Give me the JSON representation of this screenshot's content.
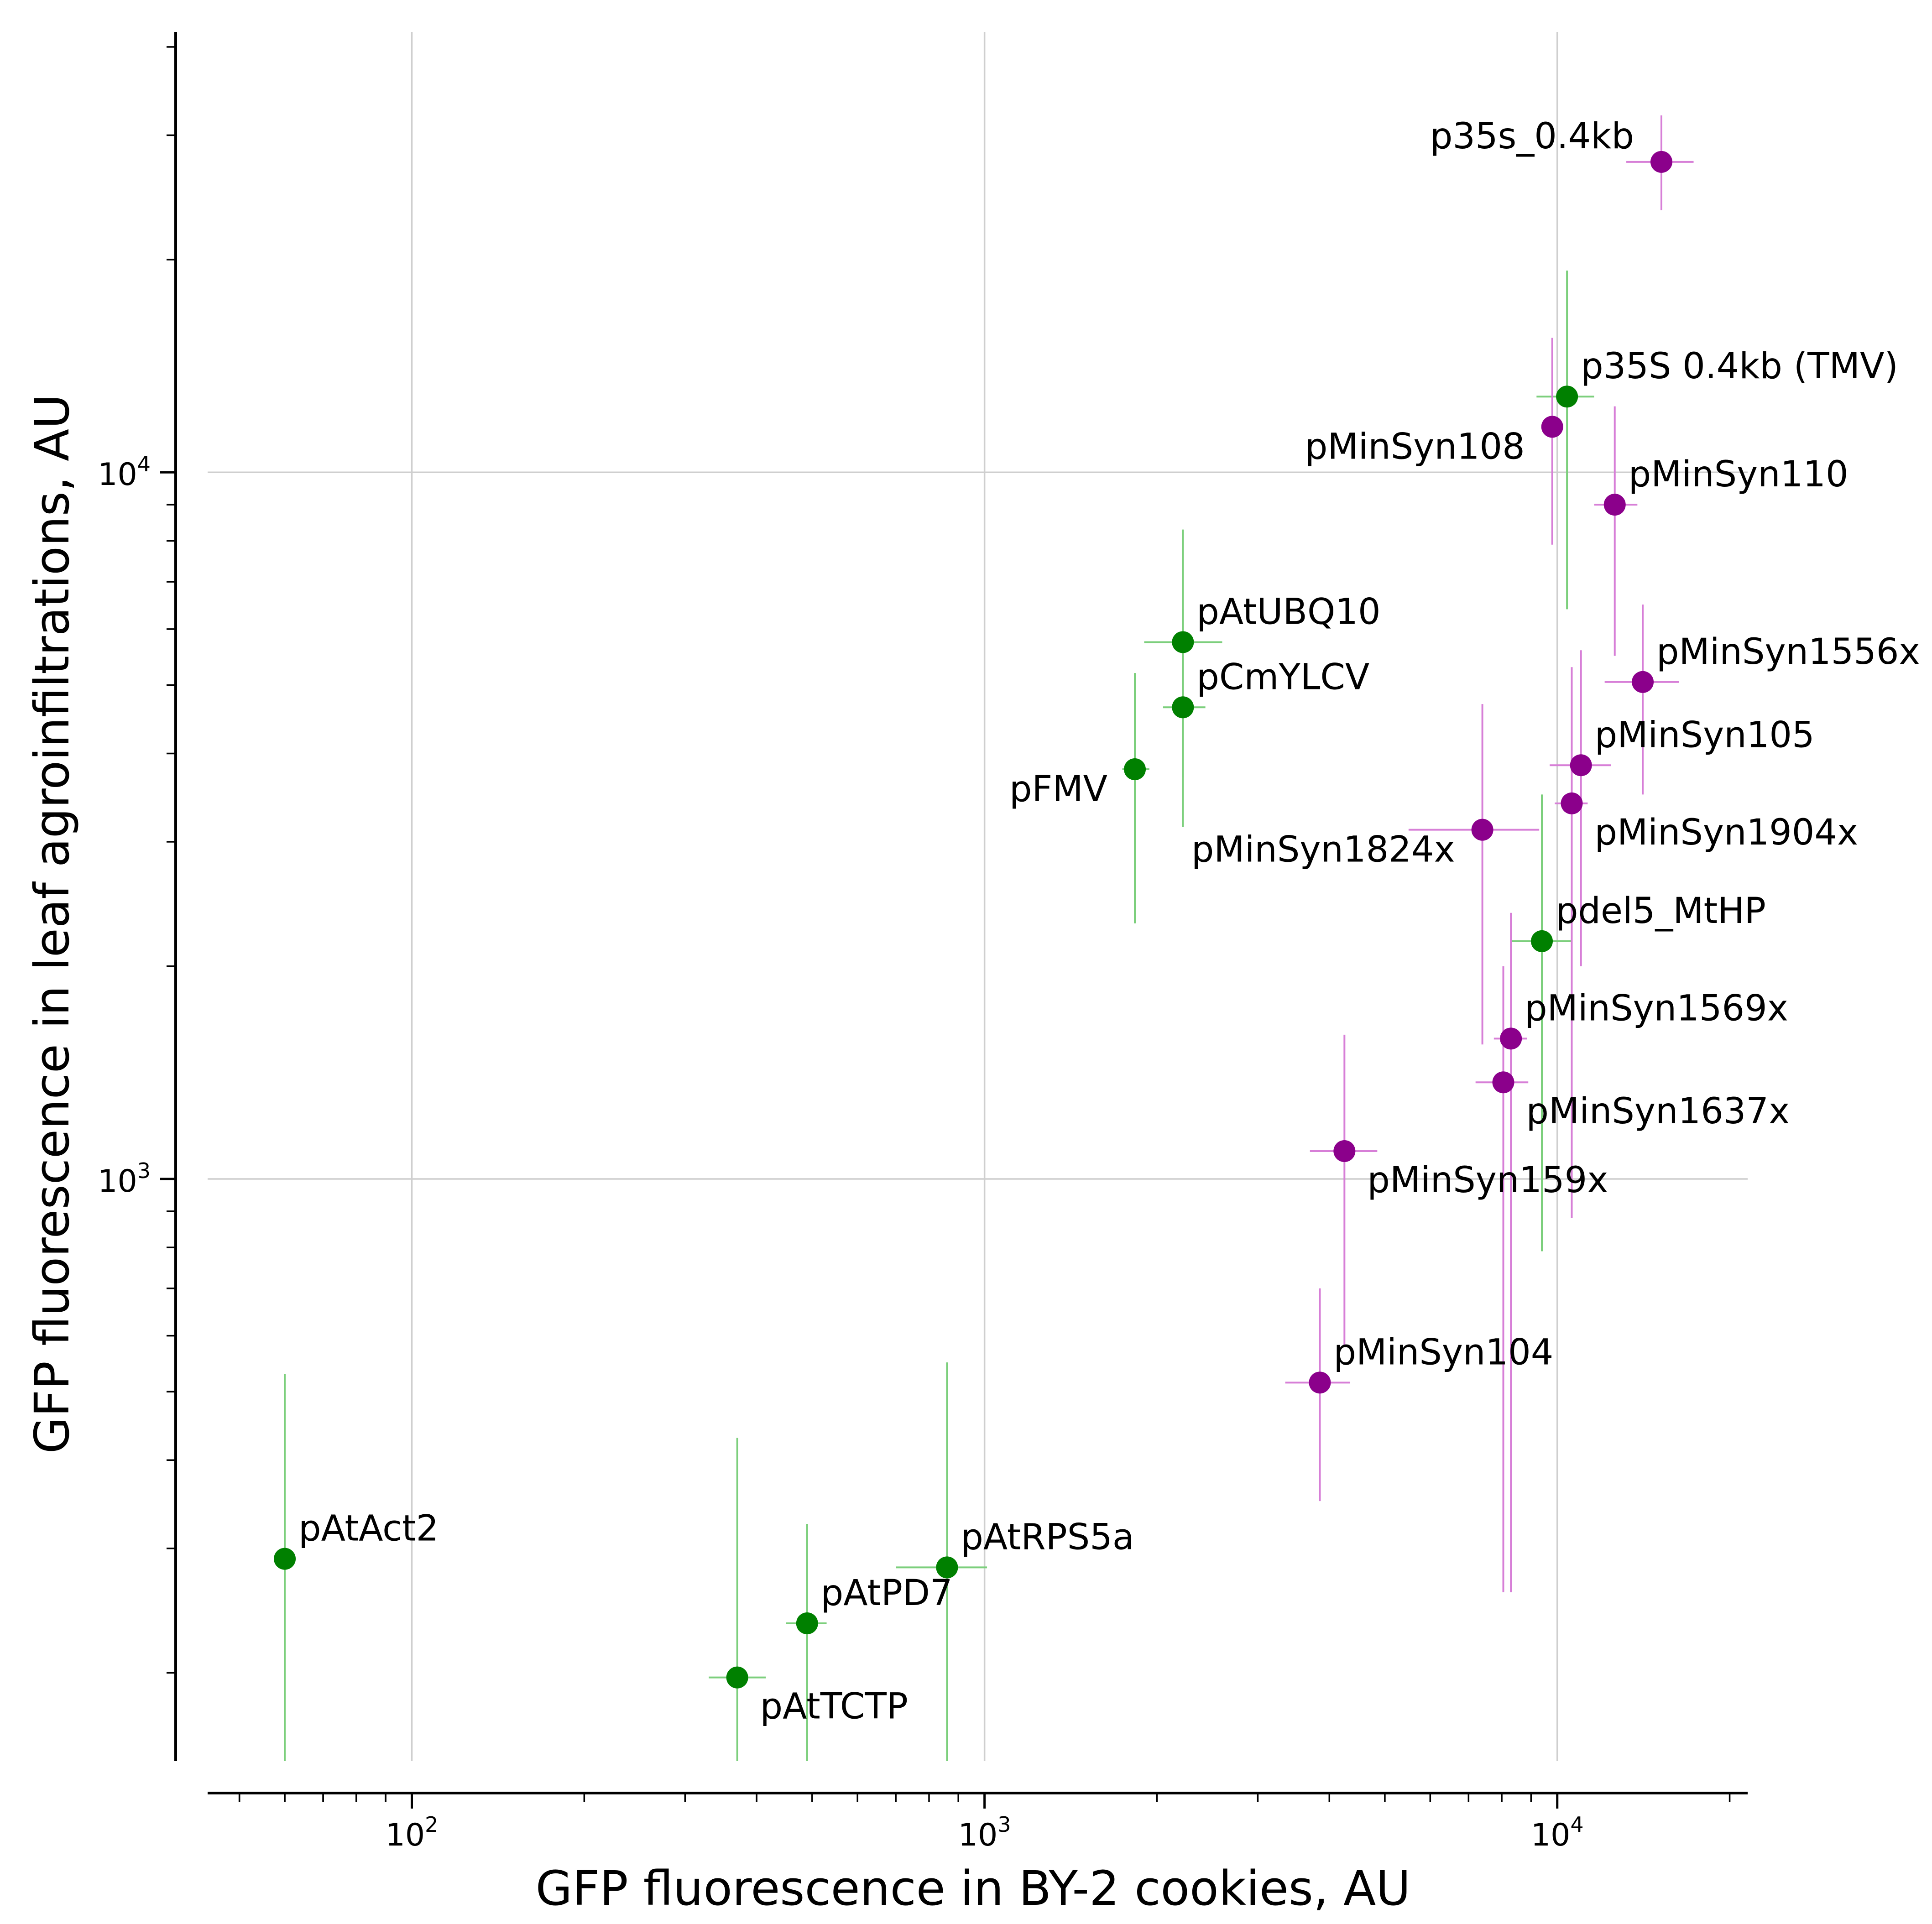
{
  "chart_data": {
    "type": "scatter",
    "title": "",
    "xlabel": "GFP fluorescence in BY-2 cookies, AU",
    "ylabel": "GFP fluorescence in leaf agroinfiltrations, AU",
    "xscale": "log",
    "yscale": "log",
    "xlim": [
      44,
      21500
    ],
    "ylim": [
      150,
      42000
    ],
    "xticks": [
      {
        "value": 100,
        "base": "10",
        "exp": "2"
      },
      {
        "value": 1000,
        "base": "10",
        "exp": "3"
      },
      {
        "value": 10000,
        "base": "10",
        "exp": "4"
      }
    ],
    "yticks": [
      {
        "value": 1000,
        "base": "10",
        "exp": "3"
      },
      {
        "value": 10000,
        "base": "10",
        "exp": "4"
      }
    ],
    "grid": true,
    "colors": {
      "green": "#008000",
      "green_err": "#7ccf7c",
      "purple": "#8b008b",
      "purple_err": "#d77fd7"
    },
    "series": [
      {
        "name": "green",
        "color": "#008000",
        "points": [
          {
            "label": "pAtAct2",
            "x": 60,
            "y": 290,
            "xerr": [
              60,
              60
            ],
            "yerr": [
              150,
              530
            ],
            "label_pos": "upper-right"
          },
          {
            "label": "pAtTCTP",
            "x": 370,
            "y": 197,
            "xerr": [
              330,
              415
            ],
            "yerr": [
              150,
              430
            ],
            "label_pos": "lower-right"
          },
          {
            "label": "pAtPD7",
            "x": 490,
            "y": 235,
            "xerr": [
              450,
              530
            ],
            "yerr": [
              150,
              325
            ],
            "label_pos": "upper-right"
          },
          {
            "label": "pAtRPS5a",
            "x": 860,
            "y": 282,
            "xerr": [
              700,
              1010
            ],
            "yerr": [
              150,
              550
            ],
            "label_pos": "upper-right"
          },
          {
            "label": "pFMV",
            "x": 1830,
            "y": 3800,
            "xerr": [
              1740,
              1940
            ],
            "yerr": [
              2300,
              5200
            ],
            "label_pos": "lower-left"
          },
          {
            "label": "pCmYLCV",
            "x": 2220,
            "y": 4650,
            "xerr": [
              2050,
              2430
            ],
            "yerr": [
              3150,
              6400
            ],
            "label_pos": "upper-right"
          },
          {
            "label": "pAtUBQ10",
            "x": 2220,
            "y": 5750,
            "xerr": [
              1900,
              2600
            ],
            "yerr": [
              3700,
              8300
            ],
            "label_pos": "upper-right"
          },
          {
            "label": "pdel5_MtHP",
            "x": 9400,
            "y": 2170,
            "xerr": [
              8300,
              10600
            ],
            "yerr": [
              790,
              3500
            ],
            "label_pos": "upper-right"
          },
          {
            "label": "p35S 0.4kb (TMV)",
            "x": 10400,
            "y": 12800,
            "xerr": [
              9200,
              11600
            ],
            "yerr": [
              6400,
              19300
            ],
            "label_pos": "upper-right"
          }
        ]
      },
      {
        "name": "purple",
        "color": "#8b008b",
        "points": [
          {
            "label": "p35s_0.4kb",
            "x": 15200,
            "y": 27500,
            "xerr": [
              13200,
              17300
            ],
            "yerr": [
              23500,
              32000
            ],
            "label_pos": "upper-left"
          },
          {
            "label": "pMinSyn108",
            "x": 9800,
            "y": 11600,
            "xerr": [
              9650,
              9950
            ],
            "yerr": [
              7900,
              15500
            ],
            "label_pos": "lower-left"
          },
          {
            "label": "pMinSyn110",
            "x": 12600,
            "y": 9000,
            "xerr": [
              11600,
              13800
            ],
            "yerr": [
              5500,
              12400
            ],
            "label_pos": "upper-right"
          },
          {
            "label": "pMinSyn1556x",
            "x": 14100,
            "y": 5050,
            "xerr": [
              12100,
              16300
            ],
            "yerr": [
              3500,
              6500
            ],
            "label_pos": "upper-right"
          },
          {
            "label": "pMinSyn105",
            "x": 11000,
            "y": 3850,
            "xerr": [
              9700,
              12400
            ],
            "yerr": [
              2000,
              5600
            ],
            "label_pos": "upper-right"
          },
          {
            "label": "pMinSyn1904x",
            "x": 10600,
            "y": 3400,
            "xerr": [
              9900,
              11300
            ],
            "yerr": [
              880,
              5300
            ],
            "label_pos": "lower-right"
          },
          {
            "label": "pMinSyn1824x",
            "x": 7400,
            "y": 3120,
            "xerr": [
              5500,
              9300
            ],
            "yerr": [
              1550,
              4700
            ],
            "label_pos": "lower-left"
          },
          {
            "label": "pMinSyn1569x",
            "x": 8300,
            "y": 1580,
            "xerr": [
              7750,
              8850
            ],
            "yerr": [
              260,
              2380
            ],
            "label_pos": "upper-right"
          },
          {
            "label": "pMinSyn1637x",
            "x": 8050,
            "y": 1370,
            "xerr": [
              7200,
              8900
            ],
            "yerr": [
              260,
              2000
            ],
            "label_pos": "lower-right"
          },
          {
            "label": "pMinSyn159x",
            "x": 4250,
            "y": 1095,
            "xerr": [
              3700,
              4850
            ],
            "yerr": [
              580,
              1600
            ],
            "label_pos": "lower-right"
          },
          {
            "label": "pMinSyn104",
            "x": 3850,
            "y": 515,
            "xerr": [
              3350,
              4350
            ],
            "yerr": [
              350,
              700
            ],
            "label_pos": "upper-right"
          }
        ]
      }
    ]
  }
}
